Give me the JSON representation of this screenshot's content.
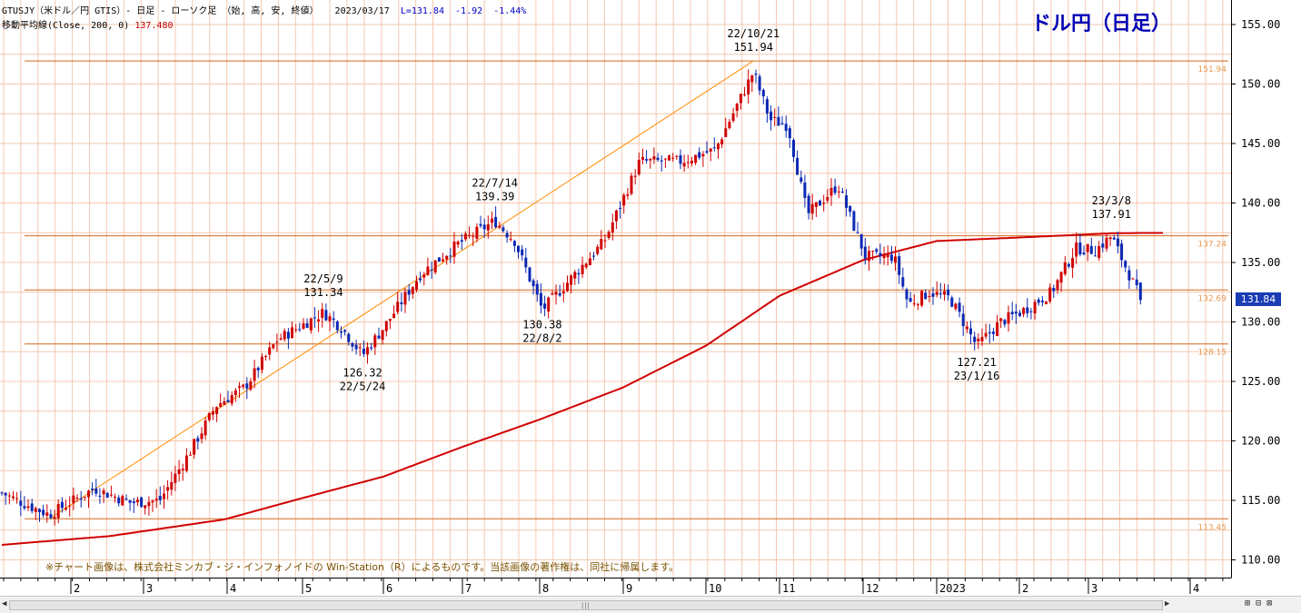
{
  "header": {
    "line1_title": "GTUSJY（米ドル／円 GTIS）- 日足 - ローソク足 （始, 高, 安, 終値）",
    "line1_date": "2023/03/17",
    "line1_last": "L=131.84",
    "line1_change": "-1.92",
    "line1_pct": "-1.44%",
    "line2_label": "移動平均線(Close, 200, 0)",
    "line2_value": "137.480"
  },
  "brand": "ドル円（日足）",
  "copyright": "※チャート画像は、株式会社ミンカブ・ジ・インフォノイドの Win-Station（R）によるものです。当該画像の著作権は、同社に帰属します。",
  "colors": {
    "bull": "#d00000",
    "bear": "#0a28b4",
    "ma": "#d00000",
    "hline": "#d2691e",
    "trendline": "#ff8c00",
    "grid": "#f4c8b0",
    "price_tag": "#1a3cb4"
  },
  "icons": {
    "scroll_left": "arrow-left-icon",
    "scroll_right": "arrow-right-icon",
    "zoom_in": "zoom-in-icon",
    "zoom_out": "zoom-out-icon"
  },
  "chart_data": {
    "type": "candlestick",
    "title": "ドル円（日足）",
    "series_name": "GTUSJY",
    "y_ticks": [
      "155.00",
      "150.00",
      "145.00",
      "140.00",
      "135.00",
      "130.00",
      "125.00",
      "120.00",
      "115.00",
      "110.00"
    ],
    "ylim": [
      108.3,
      156.9
    ],
    "x_month_labels": [
      "2",
      "3",
      "4",
      "5",
      "6",
      "7",
      "8",
      "9",
      "10",
      "11",
      "12",
      "2023",
      "2",
      "3",
      "4"
    ],
    "last_price_label": "131.84",
    "horizontal_levels": [
      {
        "value": 151.94,
        "label": "151.94"
      },
      {
        "value": 137.24,
        "label": "137.24"
      },
      {
        "value": 132.69,
        "label": "132.69"
      },
      {
        "value": 128.15,
        "label": "128.15"
      },
      {
        "value": 113.45,
        "label": "113.45"
      }
    ],
    "trendline": {
      "from": {
        "date": "22/1/24",
        "value": 113.45
      },
      "to": {
        "date": "22/10/21",
        "value": 151.94
      }
    },
    "annotations": [
      {
        "date": "22/5/9",
        "value": 131.34,
        "position": "above"
      },
      {
        "date": "22/5/24",
        "value": 126.32,
        "position": "below"
      },
      {
        "date": "22/7/14",
        "value": 139.39,
        "position": "above"
      },
      {
        "date": "22/8/2",
        "value": 130.38,
        "position": "below"
      },
      {
        "date": "22/10/21",
        "value": 151.94,
        "position": "above"
      },
      {
        "date": "23/1/16",
        "value": 127.21,
        "position": "below"
      },
      {
        "date": "23/3/8",
        "value": 137.91,
        "position": "above"
      }
    ],
    "price_anchors": [
      [
        "22/1/3",
        116.0
      ],
      [
        "22/1/14",
        114.8
      ],
      [
        "22/1/24",
        113.8
      ],
      [
        "22/2/10",
        116.0
      ],
      [
        "22/2/24",
        114.8
      ],
      [
        "22/3/7",
        115.0
      ],
      [
        "22/3/18",
        119.0
      ],
      [
        "22/3/28",
        123.0
      ],
      [
        "22/4/8",
        124.5
      ],
      [
        "22/4/21",
        128.5
      ],
      [
        "22/5/9",
        130.8
      ],
      [
        "22/5/16",
        129.5
      ],
      [
        "22/5/24",
        127.2
      ],
      [
        "22/6/2",
        129.8
      ],
      [
        "22/6/15",
        134.0
      ],
      [
        "22/6/29",
        136.5
      ],
      [
        "22/7/14",
        138.5
      ],
      [
        "22/7/22",
        136.8
      ],
      [
        "22/8/2",
        131.0
      ],
      [
        "22/8/12",
        133.5
      ],
      [
        "22/8/25",
        136.8
      ],
      [
        "22/9/7",
        143.5
      ],
      [
        "22/9/22",
        143.5
      ],
      [
        "22/10/5",
        144.5
      ],
      [
        "22/10/21",
        151.0
      ],
      [
        "22/10/28",
        147.0
      ],
      [
        "22/11/4",
        146.5
      ],
      [
        "22/11/11",
        139.0
      ],
      [
        "22/11/22",
        141.5
      ],
      [
        "22/12/2",
        135.5
      ],
      [
        "22/12/14",
        135.5
      ],
      [
        "22/12/20",
        131.5
      ],
      [
        "22/12/29",
        132.5
      ],
      [
        "23/1/6",
        132.0
      ],
      [
        "23/1/16",
        128.0
      ],
      [
        "23/1/25",
        130.0
      ],
      [
        "23/2/3",
        131.0
      ],
      [
        "23/2/14",
        132.5
      ],
      [
        "23/2/24",
        136.2
      ],
      [
        "23/3/3",
        136.0
      ],
      [
        "23/3/8",
        137.2
      ],
      [
        "23/3/17",
        131.84
      ]
    ],
    "ma_anchors": [
      [
        "22/1/3",
        111.2
      ],
      [
        "22/2/16",
        112.0
      ],
      [
        "22/3/31",
        113.4
      ],
      [
        "22/5/1",
        115.2
      ],
      [
        "22/6/1",
        117.0
      ],
      [
        "22/7/1",
        119.5
      ],
      [
        "22/8/1",
        121.8
      ],
      [
        "22/9/1",
        124.5
      ],
      [
        "22/10/1",
        128.0
      ],
      [
        "22/11/1",
        132.2
      ],
      [
        "22/12/1",
        135.2
      ],
      [
        "23/1/1",
        136.8
      ],
      [
        "23/2/1",
        137.1
      ],
      [
        "23/3/8",
        137.45
      ],
      [
        "23/3/17",
        137.48
      ]
    ]
  }
}
